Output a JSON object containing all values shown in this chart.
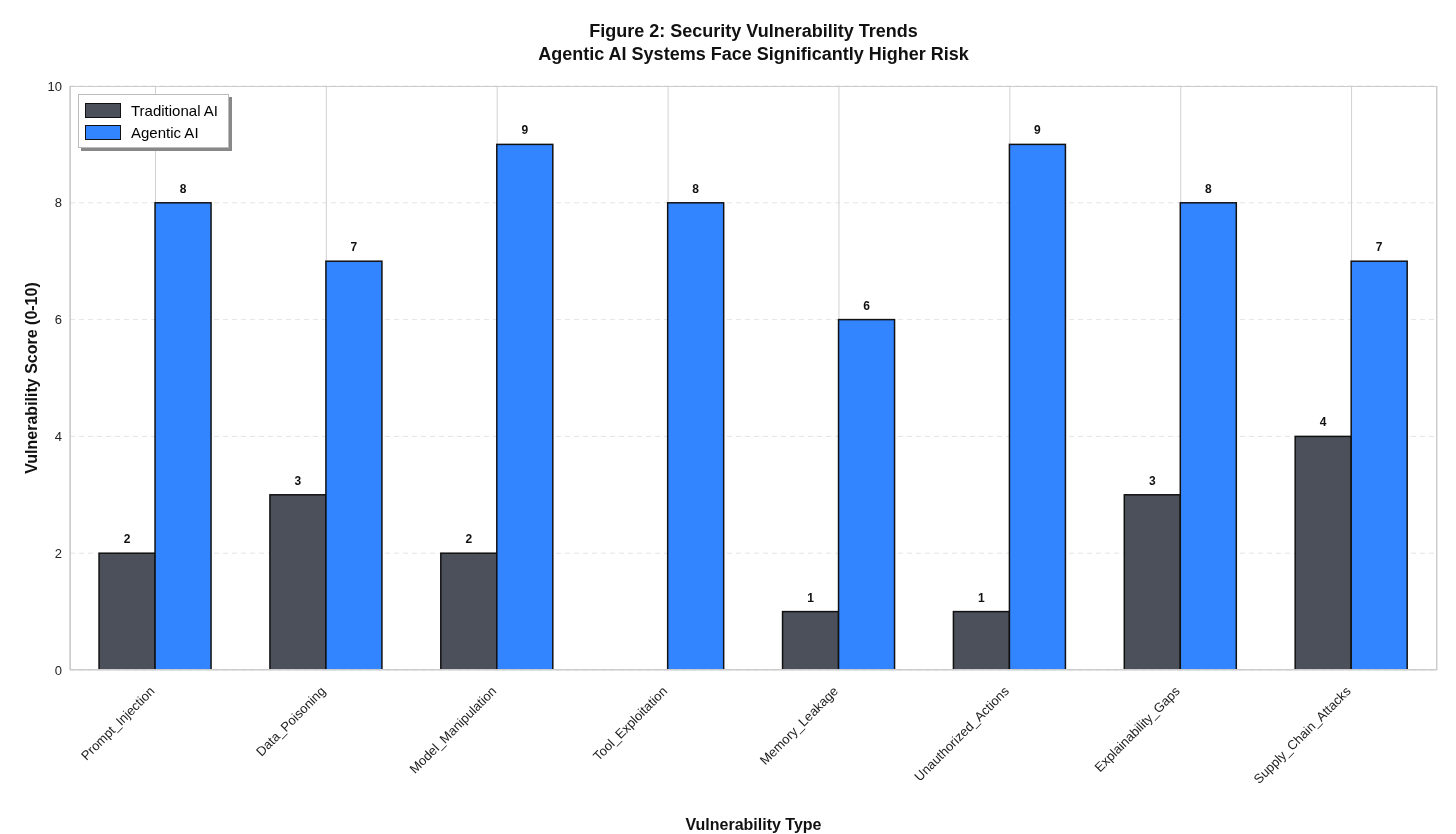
{
  "chart_data": {
    "type": "bar",
    "title": "Figure 2: Security Vulnerability Trends",
    "subtitle": "Agentic AI Systems Face Significantly Higher Risk",
    "xlabel": "Vulnerability Type",
    "ylabel": "Vulnerability Score (0-10)",
    "categories": [
      "Prompt_Injection",
      "Data_Poisoning",
      "Model_Manipulation",
      "Tool_Exploitation",
      "Memory_Leakage",
      "Unauthorized_Actions",
      "Explainability_Gaps",
      "Supply_Chain_Attacks"
    ],
    "series": [
      {
        "name": "Traditional AI",
        "color": "#4b505b",
        "values": [
          2,
          3,
          2,
          0,
          1,
          1,
          3,
          4
        ],
        "value_labels": [
          "2",
          "3",
          "2",
          null,
          "1",
          "1",
          "3",
          "4"
        ]
      },
      {
        "name": "Agentic AI",
        "color": "#3385ff",
        "values": [
          8,
          7,
          9,
          8,
          6,
          9,
          8,
          7
        ],
        "value_labels": [
          "8",
          "7",
          "9",
          "8",
          "6",
          "9",
          "8",
          "7"
        ]
      }
    ],
    "ylim": [
      0,
      10
    ],
    "yticks": [
      0,
      2,
      4,
      6,
      8,
      10
    ],
    "grid": true,
    "legend": "top left"
  }
}
